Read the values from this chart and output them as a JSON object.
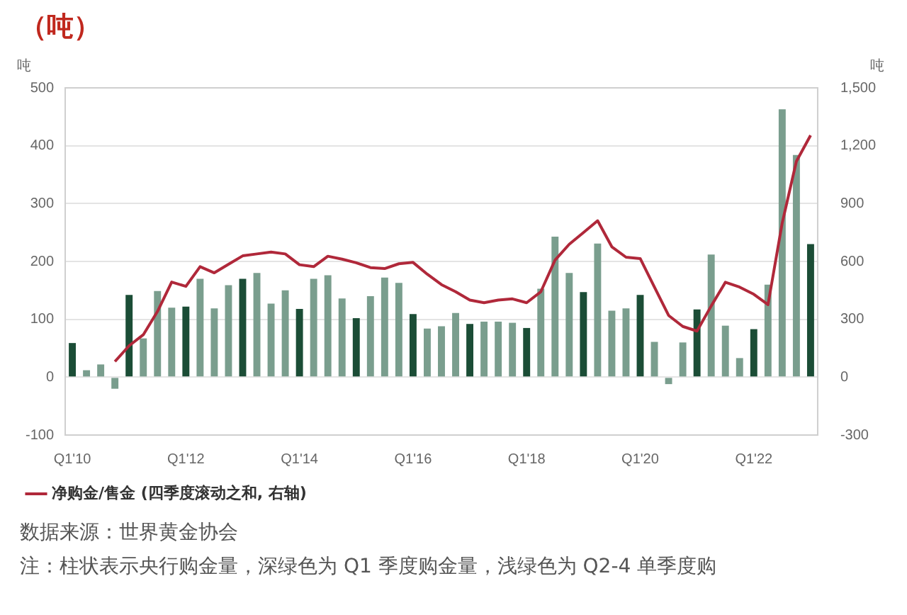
{
  "chart_data": {
    "type": "bar",
    "title": "（吨）",
    "ylabel": "吨",
    "y2label": "吨",
    "categories": [
      "Q1'10",
      null,
      null,
      null,
      null,
      null,
      null,
      null,
      "Q1'12",
      null,
      null,
      null,
      null,
      null,
      null,
      null,
      "Q1'14",
      null,
      null,
      null,
      null,
      null,
      null,
      null,
      "Q1'16",
      null,
      null,
      null,
      null,
      null,
      null,
      null,
      "Q1'18",
      null,
      null,
      null,
      null,
      null,
      null,
      null,
      "Q1'20",
      null,
      null,
      null,
      null,
      null,
      null,
      null,
      "Q1'22",
      null,
      null,
      null,
      null
    ],
    "series": [
      {
        "values": [
          59,
          12,
          22,
          -20,
          142,
          67,
          149,
          120,
          122,
          170,
          119,
          159,
          170,
          180,
          127,
          150,
          118,
          170,
          176,
          136,
          102,
          140,
          172,
          163,
          109,
          84,
          88,
          111,
          92,
          96,
          96,
          94,
          85,
          153,
          243,
          180,
          147,
          231,
          115,
          119,
          142,
          61,
          -12,
          60,
          117,
          212,
          89,
          33,
          83,
          160,
          463,
          384,
          230
        ],
        "colors": [
          "#1b4d36",
          "#7a9e8e",
          "#7a9e8e",
          "#7a9e8e",
          "#1b4d36",
          "#7a9e8e",
          "#7a9e8e",
          "#7a9e8e",
          "#1b4d36",
          "#7a9e8e",
          "#7a9e8e",
          "#7a9e8e",
          "#1b4d36",
          "#7a9e8e",
          "#7a9e8e",
          "#7a9e8e",
          "#1b4d36",
          "#7a9e8e",
          "#7a9e8e",
          "#7a9e8e",
          "#1b4d36",
          "#7a9e8e",
          "#7a9e8e",
          "#7a9e8e",
          "#1b4d36",
          "#7a9e8e",
          "#7a9e8e",
          "#7a9e8e",
          "#1b4d36",
          "#7a9e8e",
          "#7a9e8e",
          "#7a9e8e",
          "#1b4d36",
          "#7a9e8e",
          "#7a9e8e",
          "#7a9e8e",
          "#1b4d36",
          "#7a9e8e",
          "#7a9e8e",
          "#7a9e8e",
          "#1b4d36",
          "#7a9e8e",
          "#7a9e8e",
          "#7a9e8e",
          "#1b4d36",
          "#7a9e8e",
          "#7a9e8e",
          "#7a9e8e",
          "#1b4d36",
          "#7a9e8e",
          "#7a9e8e",
          "#7a9e8e",
          "#1b4d36"
        ]
      },
      {
        "type": "line",
        "name": "净购金/售金 (四季度滚动之和, 右轴)",
        "color": "#b0283a",
        "axis": "y2",
        "values": [
          null,
          null,
          null,
          81,
          163,
          220,
          341,
          493,
          471,
          573,
          541,
          585,
          629,
          639,
          649,
          639,
          583,
          573,
          627,
          612,
          593,
          568,
          563,
          588,
          595,
          534,
          480,
          443,
          400,
          386,
          400,
          406,
          386,
          443,
          607,
          689,
          750,
          811,
          676,
          622,
          615,
          467,
          320,
          263,
          239,
          369,
          492,
          467,
          430,
          376,
          799,
          1119,
          1254
        ]
      }
    ],
    "ylim": [
      -100,
      500
    ],
    "yticks": [
      -100,
      0,
      100,
      200,
      300,
      400,
      500
    ],
    "y2lim": [
      -300,
      1500
    ],
    "y2ticks": [
      -300,
      0,
      300,
      600,
      900,
      {
        "value": 1200,
        "label": "1,200"
      },
      {
        "value": 1500,
        "label": "1,500"
      }
    ],
    "grid": "y",
    "legend": "bottom left",
    "marker": "none",
    "line_style": "solid",
    "annotations": [
      "数据来源：世界黄金协会",
      "注：柱状表示央行购金量，深绿色为 Q1 季度购金量，浅绿色为 Q2-4 单季度购"
    ]
  }
}
